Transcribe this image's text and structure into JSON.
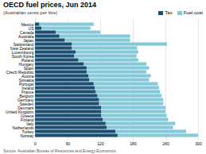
{
  "chart_data": {
    "type": "bar",
    "orientation": "horizontal",
    "stacked": true,
    "title": "OECD fuel prices, Jun 2014",
    "subtitle": "(Australian cents per litre)",
    "source": "Source: Australian Bureau of Resources and Energy Economics",
    "categories": [
      "Mexico",
      "US",
      "Canada",
      "Australia",
      "Japan",
      "Switzerland",
      "New Zealand",
      "Luxembourg",
      "South Korea",
      "Poland",
      "Hungary",
      "Spain",
      "Czech Republic",
      "Austria",
      "Slovakia",
      "Portugal",
      "Ireland",
      "France",
      "Belgium",
      "Germany",
      "Sweden",
      "Denmark",
      "United Kingdom",
      "Greece",
      "Finland",
      "Italy",
      "Netherlands",
      "Turkey",
      "Norway"
    ],
    "series": [
      {
        "name": "Tax",
        "color": "#1b4f72",
        "values": [
          8,
          12,
          38,
          45,
          55,
          68,
          68,
          75,
          72,
          80,
          90,
          95,
          95,
          98,
          100,
          108,
          110,
          112,
          115,
          118,
          118,
          122,
          122,
          122,
          125,
          130,
          132,
          148,
          152
        ]
      },
      {
        "name": "Fuel cost",
        "color": "#85c8d8",
        "values": [
          100,
          90,
          82,
          130,
          120,
          175,
          120,
          115,
          115,
          110,
          115,
          115,
          110,
          115,
          110,
          118,
          118,
          118,
          118,
          118,
          118,
          118,
          118,
          120,
          120,
          128,
          122,
          130,
          148
        ]
      }
    ],
    "xlim": [
      0,
      300
    ],
    "xticks": [
      0,
      60,
      120,
      180,
      240,
      300
    ],
    "grid": true,
    "legend": "top"
  }
}
